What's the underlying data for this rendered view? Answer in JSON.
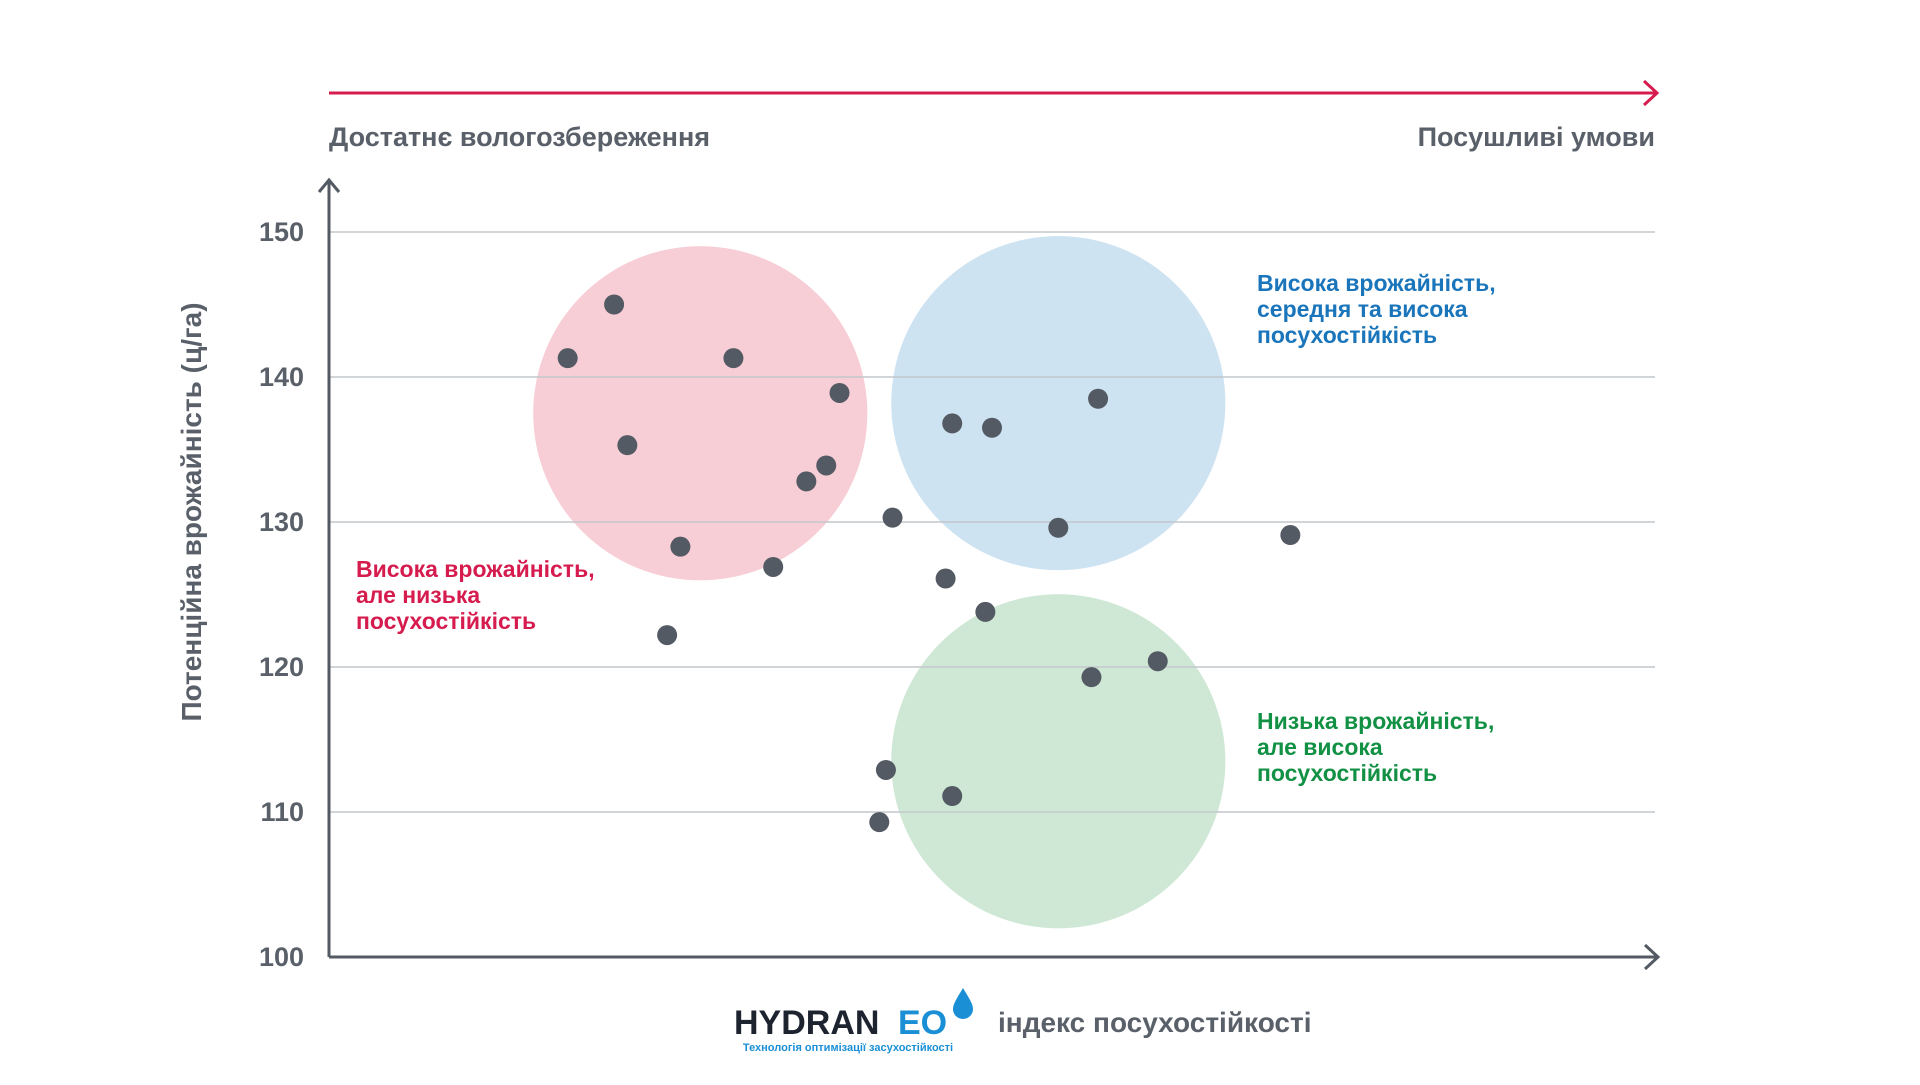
{
  "chart_data": {
    "type": "scatter",
    "title": "",
    "xlabel": "індекс посухостійкості",
    "ylabel": "Потенційна врожайність (ц/га)",
    "ylim": [
      100,
      150
    ],
    "yticks": [
      100,
      110,
      120,
      130,
      140,
      150
    ],
    "x_scale_left": "Достатнє вологозбереження",
    "x_scale_right": "Посушливі умови",
    "grid": true,
    "point_color": "#545a63",
    "points": [
      {
        "x": 18,
        "y": 141.3
      },
      {
        "x": 21.5,
        "y": 145.0
      },
      {
        "x": 22.5,
        "y": 135.3
      },
      {
        "x": 26.5,
        "y": 128.3
      },
      {
        "x": 25.5,
        "y": 122.2
      },
      {
        "x": 30.5,
        "y": 141.3
      },
      {
        "x": 33.5,
        "y": 126.9
      },
      {
        "x": 36,
        "y": 132.8
      },
      {
        "x": 37.5,
        "y": 133.9
      },
      {
        "x": 38.5,
        "y": 138.9
      },
      {
        "x": 41.5,
        "y": 109.3
      },
      {
        "x": 42,
        "y": 112.9
      },
      {
        "x": 42.5,
        "y": 130.3
      },
      {
        "x": 46.5,
        "y": 126.1
      },
      {
        "x": 47,
        "y": 136.8
      },
      {
        "x": 47,
        "y": 111.1
      },
      {
        "x": 50,
        "y": 136.5
      },
      {
        "x": 49.5,
        "y": 123.8
      },
      {
        "x": 55,
        "y": 129.6
      },
      {
        "x": 58,
        "y": 138.5
      },
      {
        "x": 57.5,
        "y": 119.3
      },
      {
        "x": 62.5,
        "y": 120.4
      },
      {
        "x": 72.5,
        "y": 129.1
      }
    ],
    "clusters": [
      {
        "label_lines": [
          "Висока врожайність,",
          "але низька",
          "посухостійкість"
        ],
        "color": "#f2b3c0",
        "text_color": "#d61c4e",
        "center_x": 28,
        "center_y": 137.5,
        "radius_x": 12.6,
        "label_side": "left"
      },
      {
        "label_lines": [
          "Висока врожайність,",
          "середня та висока",
          "посухостійкість"
        ],
        "color": "#b3d4ea",
        "text_color": "#1a75bb",
        "center_x": 55,
        "center_y": 138.2,
        "radius_x": 12.6,
        "label_side": "right"
      },
      {
        "label_lines": [
          "Низька врожайність,",
          "але висока",
          "посухостійкість"
        ],
        "color": "#b5dbbf",
        "text_color": "#129044",
        "center_x": 55,
        "center_y": 113.5,
        "radius_x": 12.6,
        "label_side": "right"
      }
    ],
    "xlim": [
      0,
      100
    ]
  },
  "colors": {
    "axis": "#545a63",
    "arrow_top": "#d61c4e",
    "grid": "#c4c7cc",
    "brand_dark": "#1d2430",
    "brand_blue": "#1a8fd6"
  },
  "brand": {
    "name_part1": "HYDRAN",
    "name_part2": "EO",
    "tagline": "Технологія оптимізації засухостійкості"
  }
}
